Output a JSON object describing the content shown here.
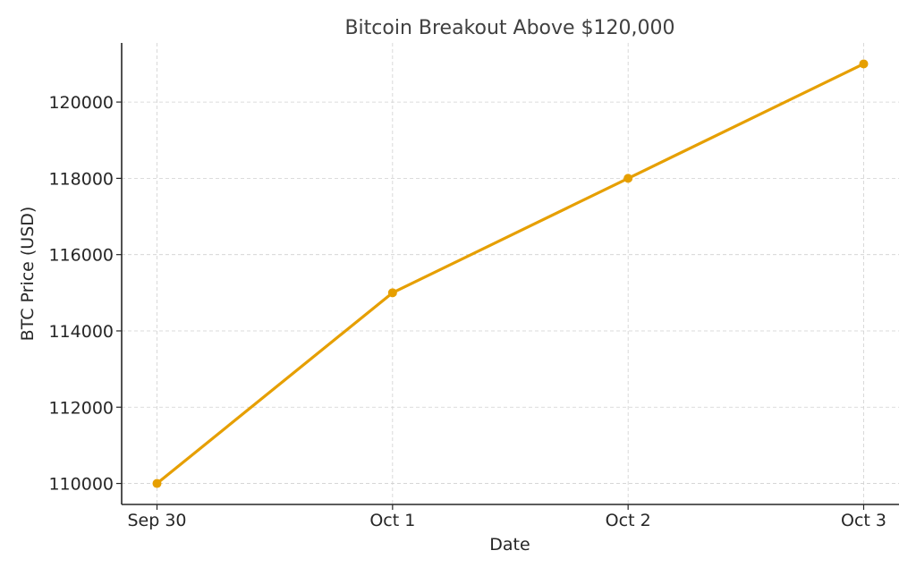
{
  "chart_data": {
    "type": "line",
    "title": "Bitcoin Breakout Above $120,000",
    "xlabel": "Date",
    "ylabel": "BTC Price (USD)",
    "categories": [
      "Sep 30",
      "Oct 1",
      "Oct 2",
      "Oct 3"
    ],
    "series": [
      {
        "values": [
          110000,
          115000,
          118000,
          121000
        ],
        "color": "#E69F00",
        "marker": "circle"
      }
    ],
    "yticks": [
      110000,
      112000,
      114000,
      116000,
      118000,
      120000
    ],
    "ylim": [
      109450,
      121550
    ],
    "grid": true,
    "legend": "none"
  }
}
